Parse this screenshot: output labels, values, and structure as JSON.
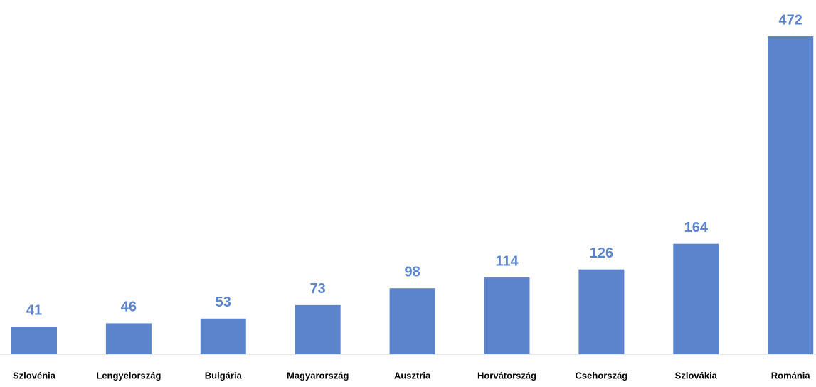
{
  "chart_data": {
    "type": "bar",
    "categories": [
      "Szlovénia",
      "Lengyelország",
      "Bulgária",
      "Magyarország",
      "Ausztria",
      "Horvátország",
      "Csehország",
      "Szlovákia",
      "Románia"
    ],
    "values": [
      41,
      46,
      53,
      73,
      98,
      114,
      126,
      164,
      472
    ],
    "color": "#5b84cc"
  }
}
